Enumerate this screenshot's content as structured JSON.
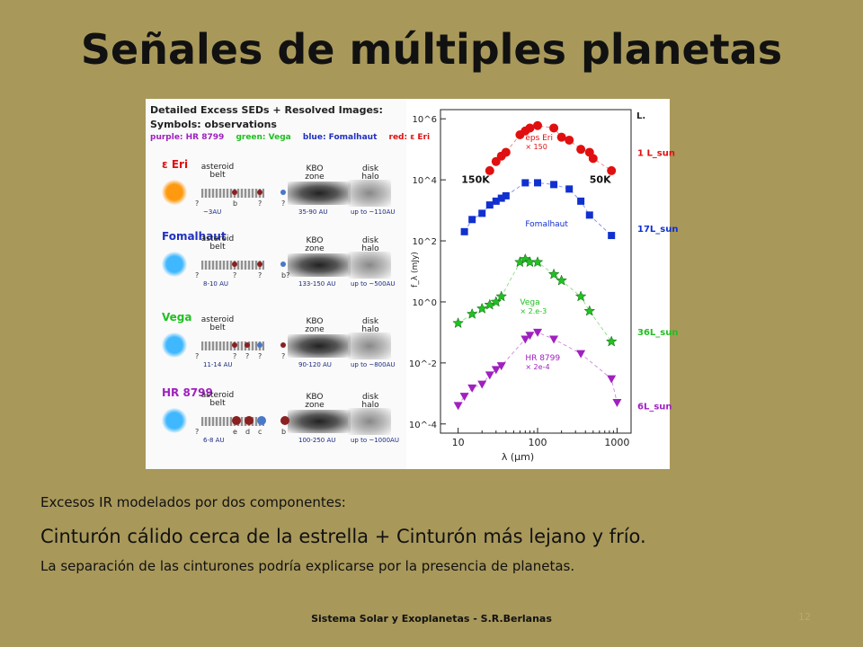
{
  "slide": {
    "title": "Señales de múltiples planetas",
    "text_line1": "Excesos IR modelados por dos componentes:",
    "text_line2": "Cinturón cálido cerca de la estrella  +  Cinturón más lejano y frío.",
    "text_line3": "La separación de las cinturones podría explicarse por la presencia de planetas.",
    "footer": "Sistema Solar y Exoplanetas - S.R.Berlanas",
    "page_number": "12"
  },
  "figure": {
    "header_line1": "Detailed Excess SEDs + Resolved Images:",
    "header_line2": "Symbols: observations",
    "legend": [
      {
        "text": "purple: HR 8799",
        "color": "#a020c0"
      },
      {
        "text": "green: Vega",
        "color": "#20c020"
      },
      {
        "text": "blue: Fomalhaut",
        "color": "#2030c0"
      },
      {
        "text": "red: ε Eri",
        "color": "#e01010"
      }
    ],
    "systems": [
      {
        "name": "ε Eri",
        "name_color": "#e01010",
        "star_color": "#ff9a10",
        "belt_label": "asteroid belt",
        "kbo_label": "KBO zone",
        "halo_label": "disk halo",
        "belt_au": "~3AU",
        "kbo_au": "35-90 AU",
        "halo_au": "up to ~110AU",
        "planet_labels": [
          "?",
          "b",
          "?",
          "?"
        ]
      },
      {
        "name": "Fomalhaut",
        "name_color": "#2030c0",
        "star_color": "#40b8ff",
        "belt_label": "asteroid belt",
        "kbo_label": "KBO zone",
        "halo_label": "disk halo",
        "belt_au": "8-10 AU",
        "kbo_au": "133-150 AU",
        "halo_au": "up to ~500AU",
        "planet_labels": [
          "?",
          "?",
          "?",
          "b?"
        ]
      },
      {
        "name": "Vega",
        "name_color": "#20c020",
        "star_color": "#40b8ff",
        "belt_label": "asteroid belt",
        "kbo_label": "KBO zone",
        "halo_label": "disk halo",
        "belt_au": "11-14 AU",
        "kbo_au": "90-120 AU",
        "halo_au": "up to ~800AU",
        "planet_labels": [
          "?",
          "?",
          "?",
          "?",
          "?"
        ]
      },
      {
        "name": "HR 8799",
        "name_color": "#a020c0",
        "star_color": "#40b8ff",
        "belt_label": "asteroid belt",
        "kbo_label": "KBO zone",
        "halo_label": "disk halo",
        "belt_au": "6-8 AU",
        "kbo_au": "100-250 AU",
        "halo_au": "up to ~1000AU",
        "planet_labels": [
          "?",
          "e",
          "d",
          "c",
          "b"
        ]
      }
    ]
  },
  "chart_data": {
    "type": "scatter",
    "xlabel": "λ (μm)",
    "ylabel": "f_λ (mJy)",
    "xscale": "log",
    "yscale": "log",
    "xlim": [
      6,
      1500
    ],
    "ylim": [
      5e-05,
      2000000
    ],
    "x_ticks": [
      "10",
      "100",
      "1000"
    ],
    "y_ticks": [
      "10^6",
      "10^4",
      "10^2",
      "10^0",
      "10^-2",
      "10^-4"
    ],
    "luminosity_header": "L.",
    "annotations": [
      "150K",
      "50K"
    ],
    "series": [
      {
        "name": "eps Eri",
        "scale_note": "× 150",
        "color": "#e01010",
        "marker": "circle",
        "luminosity": "1 L_sun",
        "points": [
          [
            25,
            20000
          ],
          [
            30,
            40000
          ],
          [
            35,
            60000
          ],
          [
            40,
            80000
          ],
          [
            60,
            300000
          ],
          [
            70,
            400000
          ],
          [
            80,
            500000
          ],
          [
            100,
            600000
          ],
          [
            160,
            500000
          ],
          [
            200,
            250000
          ],
          [
            250,
            200000
          ],
          [
            350,
            100000
          ],
          [
            450,
            80000
          ],
          [
            500,
            50000
          ],
          [
            850,
            20000
          ]
        ]
      },
      {
        "name": "Fomalhaut",
        "scale_note": "",
        "color": "#1030d0",
        "marker": "square",
        "luminosity": "17L_sun",
        "points": [
          [
            12,
            200
          ],
          [
            15,
            500
          ],
          [
            20,
            800
          ],
          [
            25,
            1500
          ],
          [
            30,
            2000
          ],
          [
            35,
            2500
          ],
          [
            40,
            3000
          ],
          [
            70,
            8000
          ],
          [
            100,
            8000
          ],
          [
            160,
            7000
          ],
          [
            250,
            5000
          ],
          [
            350,
            2000
          ],
          [
            450,
            700
          ],
          [
            850,
            150
          ]
        ]
      },
      {
        "name": "Vega",
        "scale_note": "× 2.e-3",
        "color": "#20c020",
        "marker": "star",
        "luminosity": "36L_sun",
        "points": [
          [
            10,
            0.2
          ],
          [
            15,
            0.4
          ],
          [
            20,
            0.6
          ],
          [
            25,
            0.8
          ],
          [
            30,
            1.0
          ],
          [
            35,
            1.5
          ],
          [
            60,
            20
          ],
          [
            70,
            25
          ],
          [
            80,
            20
          ],
          [
            100,
            20
          ],
          [
            160,
            8
          ],
          [
            200,
            5
          ],
          [
            350,
            1.5
          ],
          [
            450,
            0.5
          ],
          [
            850,
            0.05
          ]
        ]
      },
      {
        "name": "HR 8799",
        "scale_note": "× 2e-4",
        "color": "#a020c0",
        "marker": "triangle",
        "luminosity": "6L_sun",
        "points": [
          [
            10,
            0.0004
          ],
          [
            12,
            0.0008
          ],
          [
            15,
            0.0015
          ],
          [
            20,
            0.002
          ],
          [
            25,
            0.004
          ],
          [
            30,
            0.006
          ],
          [
            35,
            0.008
          ],
          [
            70,
            0.06
          ],
          [
            80,
            0.08
          ],
          [
            100,
            0.1
          ],
          [
            160,
            0.06
          ],
          [
            350,
            0.02
          ],
          [
            850,
            0.003
          ],
          [
            1000,
            0.0005
          ]
        ]
      }
    ],
    "theme": {
      "series_colors": [
        "#e01010",
        "#1030d0",
        "#20c020",
        "#a020c0"
      ]
    }
  }
}
